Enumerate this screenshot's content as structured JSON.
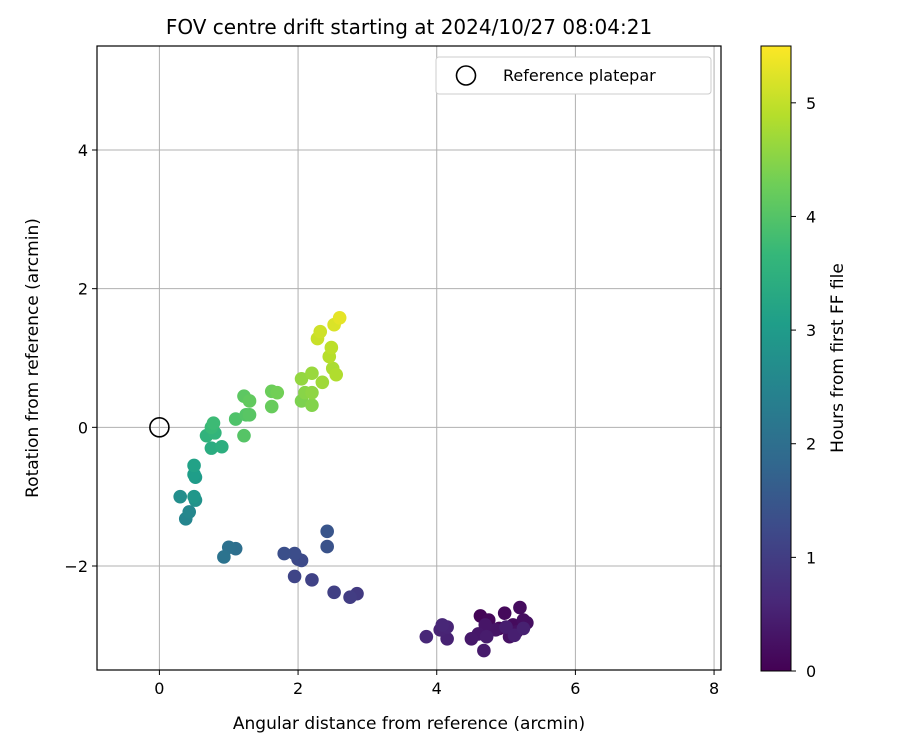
{
  "chart_data": {
    "type": "scatter",
    "title": "FOV centre drift starting at 2024/10/27 08:04:21",
    "xlabel": "Angular distance from reference (arcmin)",
    "ylabel": "Rotation from reference (arcmin)",
    "xlim": [
      -0.9,
      8.1
    ],
    "ylim": [
      -3.5,
      5.5
    ],
    "xticks": [
      0,
      2,
      4,
      6,
      8
    ],
    "yticks": [
      -2,
      0,
      2,
      4
    ],
    "grid": true,
    "legend": {
      "placement": "top-right",
      "entries": [
        "Reference platepar"
      ]
    },
    "colorbar": {
      "label": "Hours from first FF file",
      "range": [
        0,
        5.5
      ],
      "ticks": [
        0,
        1,
        2,
        3,
        4,
        5
      ],
      "colormap": "viridis"
    },
    "reference": {
      "x": 0,
      "y": 0
    },
    "points": [
      {
        "x": 4.63,
        "y": -2.72,
        "c": 0.05
      },
      {
        "x": 4.75,
        "y": -2.78,
        "c": 0.08
      },
      {
        "x": 4.9,
        "y": -2.9,
        "c": 0.1
      },
      {
        "x": 4.98,
        "y": -2.68,
        "c": 0.12
      },
      {
        "x": 5.1,
        "y": -2.85,
        "c": 0.15
      },
      {
        "x": 5.2,
        "y": -2.6,
        "c": 0.17
      },
      {
        "x": 5.25,
        "y": -2.78,
        "c": 0.2
      },
      {
        "x": 5.3,
        "y": -2.82,
        "c": 0.22
      },
      {
        "x": 5.15,
        "y": -2.95,
        "c": 0.25
      },
      {
        "x": 5.05,
        "y": -3.02,
        "c": 0.27
      },
      {
        "x": 4.85,
        "y": -2.92,
        "c": 0.3
      },
      {
        "x": 4.7,
        "y": -2.85,
        "c": 0.32
      },
      {
        "x": 4.6,
        "y": -2.98,
        "c": 0.35
      },
      {
        "x": 4.5,
        "y": -3.05,
        "c": 0.37
      },
      {
        "x": 4.68,
        "y": -3.22,
        "c": 0.4
      },
      {
        "x": 4.72,
        "y": -3.02,
        "c": 0.42
      },
      {
        "x": 5.0,
        "y": -2.88,
        "c": 0.45
      },
      {
        "x": 5.12,
        "y": -3.0,
        "c": 0.47
      },
      {
        "x": 5.25,
        "y": -2.9,
        "c": 0.5
      },
      {
        "x": 4.15,
        "y": -3.05,
        "c": 0.52
      },
      {
        "x": 4.05,
        "y": -2.92,
        "c": 0.55
      },
      {
        "x": 4.15,
        "y": -2.88,
        "c": 0.57
      },
      {
        "x": 4.08,
        "y": -2.85,
        "c": 0.6
      },
      {
        "x": 3.85,
        "y": -3.02,
        "c": 0.62
      },
      {
        "x": 2.85,
        "y": -2.4,
        "c": 0.95
      },
      {
        "x": 2.75,
        "y": -2.45,
        "c": 1.0
      },
      {
        "x": 2.52,
        "y": -2.38,
        "c": 1.05
      },
      {
        "x": 2.2,
        "y": -2.2,
        "c": 1.1
      },
      {
        "x": 1.95,
        "y": -2.15,
        "c": 1.15
      },
      {
        "x": 2.0,
        "y": -1.9,
        "c": 1.2
      },
      {
        "x": 2.05,
        "y": -1.92,
        "c": 1.25
      },
      {
        "x": 1.95,
        "y": -1.82,
        "c": 1.3
      },
      {
        "x": 1.8,
        "y": -1.82,
        "c": 1.35
      },
      {
        "x": 2.42,
        "y": -1.72,
        "c": 1.4
      },
      {
        "x": 2.42,
        "y": -1.5,
        "c": 1.45
      },
      {
        "x": 1.1,
        "y": -1.75,
        "c": 2.0
      },
      {
        "x": 1.0,
        "y": -1.73,
        "c": 2.05
      },
      {
        "x": 0.93,
        "y": -1.87,
        "c": 2.1
      },
      {
        "x": 0.38,
        "y": -1.32,
        "c": 2.5
      },
      {
        "x": 0.43,
        "y": -1.22,
        "c": 2.55
      },
      {
        "x": 0.3,
        "y": -1.0,
        "c": 2.7
      },
      {
        "x": 0.52,
        "y": -1.05,
        "c": 2.8
      },
      {
        "x": 0.5,
        "y": -1.0,
        "c": 2.9
      },
      {
        "x": 0.52,
        "y": -0.72,
        "c": 3.0
      },
      {
        "x": 0.5,
        "y": -0.68,
        "c": 3.05
      },
      {
        "x": 0.5,
        "y": -0.55,
        "c": 3.15
      },
      {
        "x": 0.75,
        "y": -0.3,
        "c": 3.4
      },
      {
        "x": 0.9,
        "y": -0.28,
        "c": 3.45
      },
      {
        "x": 0.68,
        "y": -0.12,
        "c": 3.55
      },
      {
        "x": 0.8,
        "y": -0.08,
        "c": 3.6
      },
      {
        "x": 0.75,
        "y": 0.0,
        "c": 3.7
      },
      {
        "x": 0.78,
        "y": 0.06,
        "c": 3.75
      },
      {
        "x": 1.1,
        "y": 0.12,
        "c": 3.95
      },
      {
        "x": 1.25,
        "y": 0.18,
        "c": 4.0
      },
      {
        "x": 1.22,
        "y": -0.12,
        "c": 4.02
      },
      {
        "x": 1.3,
        "y": 0.18,
        "c": 4.05
      },
      {
        "x": 1.22,
        "y": 0.45,
        "c": 4.1
      },
      {
        "x": 1.3,
        "y": 0.38,
        "c": 4.15
      },
      {
        "x": 1.62,
        "y": 0.3,
        "c": 4.2
      },
      {
        "x": 1.62,
        "y": 0.52,
        "c": 4.25
      },
      {
        "x": 1.7,
        "y": 0.5,
        "c": 4.3
      },
      {
        "x": 2.05,
        "y": 0.38,
        "c": 4.4
      },
      {
        "x": 2.2,
        "y": 0.32,
        "c": 4.45
      },
      {
        "x": 2.1,
        "y": 0.5,
        "c": 4.5
      },
      {
        "x": 2.2,
        "y": 0.5,
        "c": 4.55
      },
      {
        "x": 2.05,
        "y": 0.7,
        "c": 4.6
      },
      {
        "x": 2.2,
        "y": 0.78,
        "c": 4.65
      },
      {
        "x": 2.35,
        "y": 0.65,
        "c": 4.7
      },
      {
        "x": 2.5,
        "y": 0.85,
        "c": 4.8
      },
      {
        "x": 2.55,
        "y": 0.76,
        "c": 4.85
      },
      {
        "x": 2.45,
        "y": 1.02,
        "c": 4.9
      },
      {
        "x": 2.48,
        "y": 1.15,
        "c": 4.95
      },
      {
        "x": 2.28,
        "y": 1.28,
        "c": 5.05
      },
      {
        "x": 2.32,
        "y": 1.38,
        "c": 5.1
      },
      {
        "x": 2.52,
        "y": 1.48,
        "c": 5.2
      },
      {
        "x": 2.6,
        "y": 1.58,
        "c": 5.3
      }
    ]
  },
  "colors": {
    "grid": "#b0b0b0",
    "axis": "#000000",
    "colormap_stops": [
      "#440154",
      "#482878",
      "#3e4989",
      "#31688e",
      "#26828e",
      "#1f9e89",
      "#35b779",
      "#6ece58",
      "#b5de2b",
      "#fde725"
    ]
  }
}
